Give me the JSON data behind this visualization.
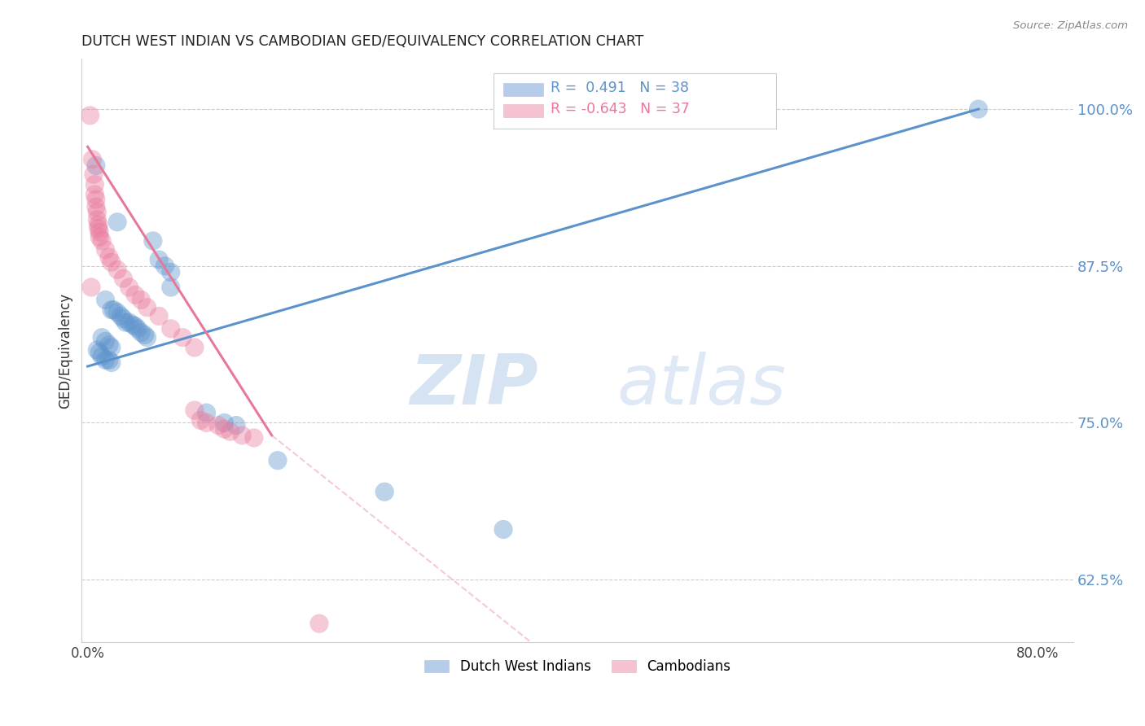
{
  "title": "DUTCH WEST INDIAN VS CAMBODIAN GED/EQUIVALENCY CORRELATION CHART",
  "source": "Source: ZipAtlas.com",
  "ylabel": "GED/Equivalency",
  "yticks": [
    0.625,
    0.75,
    0.875,
    1.0
  ],
  "ytick_labels": [
    "62.5%",
    "75.0%",
    "87.5%",
    "100.0%"
  ],
  "xtick_labels": [
    "0.0%",
    "80.0%"
  ],
  "xtick_vals": [
    0.0,
    0.8
  ],
  "xlim": [
    -0.005,
    0.83
  ],
  "ylim": [
    0.575,
    1.04
  ],
  "legend_blue_r": "0.491",
  "legend_blue_n": "38",
  "legend_pink_r": "-0.643",
  "legend_pink_n": "37",
  "legend_blue_label": "Dutch West Indians",
  "legend_pink_label": "Cambodians",
  "blue_color": "#5b92cc",
  "pink_color": "#e8789a",
  "watermark_zip": "ZIP",
  "watermark_atlas": "atlas",
  "blue_line": [
    [
      0.0,
      0.795
    ],
    [
      0.75,
      1.0
    ]
  ],
  "pink_line_solid": [
    [
      0.0,
      0.97
    ],
    [
      0.155,
      0.74
    ]
  ],
  "pink_line_dashed": [
    [
      0.155,
      0.74
    ],
    [
      0.38,
      0.57
    ]
  ],
  "blue_dots": [
    [
      0.007,
      0.955
    ],
    [
      0.025,
      0.91
    ],
    [
      0.055,
      0.895
    ],
    [
      0.06,
      0.88
    ],
    [
      0.065,
      0.875
    ],
    [
      0.07,
      0.87
    ],
    [
      0.07,
      0.858
    ],
    [
      0.015,
      0.848
    ],
    [
      0.02,
      0.84
    ],
    [
      0.022,
      0.84
    ],
    [
      0.025,
      0.838
    ],
    [
      0.028,
      0.835
    ],
    [
      0.03,
      0.833
    ],
    [
      0.032,
      0.83
    ],
    [
      0.035,
      0.83
    ],
    [
      0.038,
      0.828
    ],
    [
      0.04,
      0.827
    ],
    [
      0.042,
      0.825
    ],
    [
      0.045,
      0.822
    ],
    [
      0.048,
      0.82
    ],
    [
      0.05,
      0.818
    ],
    [
      0.012,
      0.818
    ],
    [
      0.015,
      0.815
    ],
    [
      0.018,
      0.812
    ],
    [
      0.02,
      0.81
    ],
    [
      0.008,
      0.808
    ],
    [
      0.01,
      0.806
    ],
    [
      0.012,
      0.803
    ],
    [
      0.015,
      0.8
    ],
    [
      0.018,
      0.8
    ],
    [
      0.02,
      0.798
    ],
    [
      0.1,
      0.758
    ],
    [
      0.115,
      0.75
    ],
    [
      0.125,
      0.748
    ],
    [
      0.16,
      0.72
    ],
    [
      0.25,
      0.695
    ],
    [
      0.35,
      0.665
    ],
    [
      0.75,
      1.0
    ]
  ],
  "pink_dots": [
    [
      0.002,
      0.995
    ],
    [
      0.004,
      0.96
    ],
    [
      0.005,
      0.948
    ],
    [
      0.006,
      0.94
    ],
    [
      0.006,
      0.932
    ],
    [
      0.007,
      0.928
    ],
    [
      0.007,
      0.922
    ],
    [
      0.008,
      0.918
    ],
    [
      0.008,
      0.912
    ],
    [
      0.009,
      0.908
    ],
    [
      0.009,
      0.905
    ],
    [
      0.01,
      0.902
    ],
    [
      0.01,
      0.898
    ],
    [
      0.012,
      0.895
    ],
    [
      0.015,
      0.888
    ],
    [
      0.018,
      0.882
    ],
    [
      0.02,
      0.878
    ],
    [
      0.025,
      0.872
    ],
    [
      0.03,
      0.865
    ],
    [
      0.035,
      0.858
    ],
    [
      0.003,
      0.858
    ],
    [
      0.04,
      0.852
    ],
    [
      0.045,
      0.848
    ],
    [
      0.05,
      0.842
    ],
    [
      0.06,
      0.835
    ],
    [
      0.07,
      0.825
    ],
    [
      0.08,
      0.818
    ],
    [
      0.09,
      0.81
    ],
    [
      0.09,
      0.76
    ],
    [
      0.095,
      0.752
    ],
    [
      0.1,
      0.75
    ],
    [
      0.11,
      0.748
    ],
    [
      0.115,
      0.745
    ],
    [
      0.12,
      0.743
    ],
    [
      0.13,
      0.74
    ],
    [
      0.14,
      0.738
    ],
    [
      0.195,
      0.59
    ]
  ]
}
